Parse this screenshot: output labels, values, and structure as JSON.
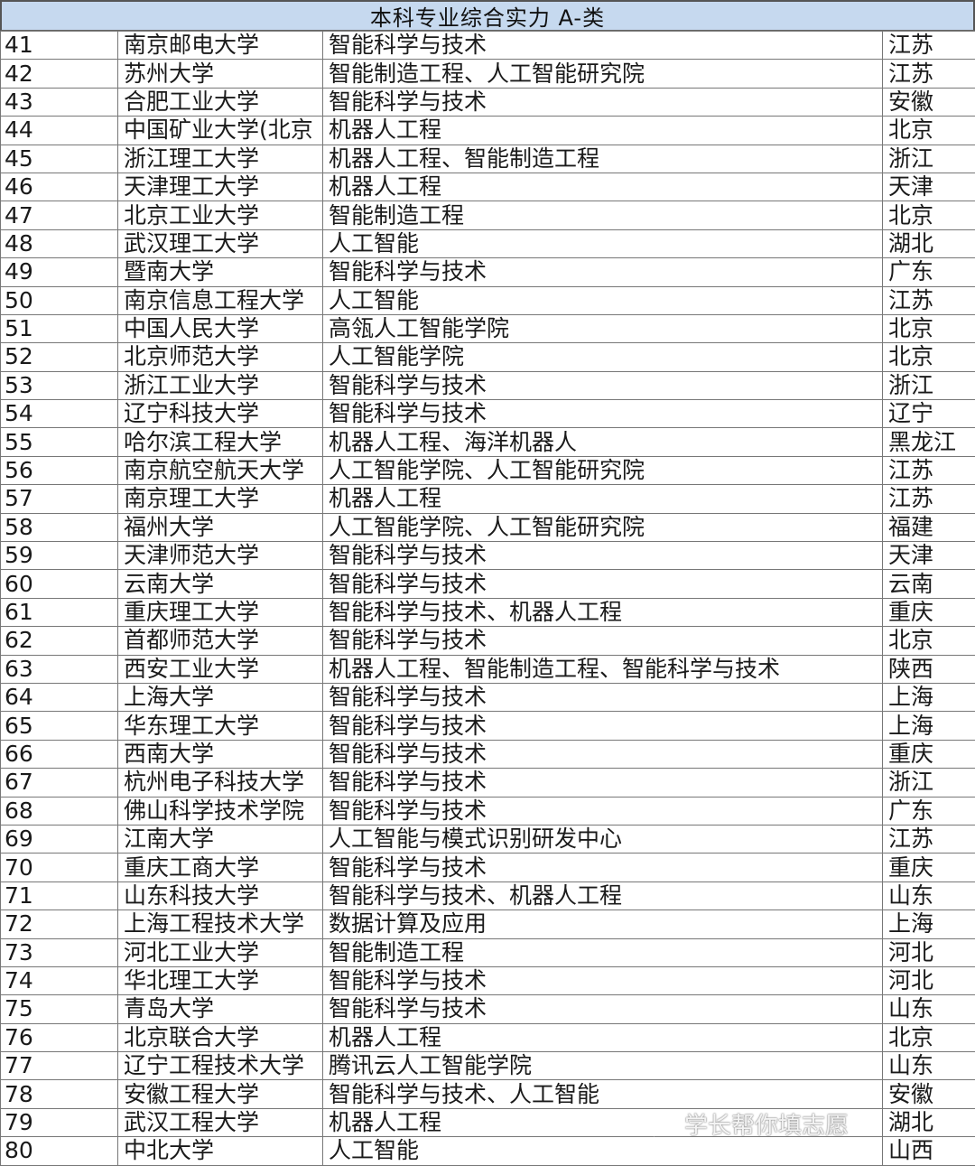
{
  "title": "本科专业综合实力 A-类",
  "rows": [
    [
      "41",
      "南京邮电大学",
      "智能科学与技术",
      "江苏"
    ],
    [
      "42",
      "苏州大学",
      "智能制造工程、人工智能研究院",
      "江苏"
    ],
    [
      "43",
      "合肥工业大学",
      "智能科学与技术",
      "安徽"
    ],
    [
      "44",
      "中国矿业大学(北京",
      "机器人工程",
      "北京"
    ],
    [
      "45",
      "浙江理工大学",
      "机器人工程、智能制造工程",
      "浙江"
    ],
    [
      "46",
      "天津理工大学",
      "机器人工程",
      "天津"
    ],
    [
      "47",
      "北京工业大学",
      "智能制造工程",
      "北京"
    ],
    [
      "48",
      "武汉理工大学",
      "人工智能",
      "湖北"
    ],
    [
      "49",
      "暨南大学",
      "智能科学与技术",
      "广东"
    ],
    [
      "50",
      "南京信息工程大学",
      "人工智能",
      "江苏"
    ],
    [
      "51",
      "中国人民大学",
      "高瓴人工智能学院",
      "北京"
    ],
    [
      "52",
      "北京师范大学",
      "人工智能学院",
      "北京"
    ],
    [
      "53",
      "浙江工业大学",
      "智能科学与技术",
      "浙江"
    ],
    [
      "54",
      "辽宁科技大学",
      "智能科学与技术",
      "辽宁"
    ],
    [
      "55",
      "哈尔滨工程大学",
      "机器人工程、海洋机器人",
      "黑龙江"
    ],
    [
      "56",
      "南京航空航天大学",
      "人工智能学院、人工智能研究院",
      "江苏"
    ],
    [
      "57",
      "南京理工大学",
      "机器人工程",
      "江苏"
    ],
    [
      "58",
      "福州大学",
      "人工智能学院、人工智能研究院",
      "福建"
    ],
    [
      "59",
      "天津师范大学",
      "智能科学与技术",
      "天津"
    ],
    [
      "60",
      "云南大学",
      "智能科学与技术",
      "云南"
    ],
    [
      "61",
      "重庆理工大学",
      "智能科学与技术、机器人工程",
      "重庆"
    ],
    [
      "62",
      "首都师范大学",
      "智能科学与技术",
      "北京"
    ],
    [
      "63",
      "西安工业大学",
      "机器人工程、智能制造工程、智能科学与技术",
      "陕西"
    ],
    [
      "64",
      "上海大学",
      "智能科学与技术",
      "上海"
    ],
    [
      "65",
      "华东理工大学",
      "智能科学与技术",
      "上海"
    ],
    [
      "66",
      "西南大学",
      "智能科学与技术",
      "重庆"
    ],
    [
      "67",
      "杭州电子科技大学",
      "智能科学与技术",
      "浙江"
    ],
    [
      "68",
      "佛山科学技术学院",
      "智能科学与技术",
      "广东"
    ],
    [
      "69",
      "江南大学",
      "人工智能与模式识别研发中心",
      "江苏"
    ],
    [
      "70",
      "重庆工商大学",
      "智能科学与技术",
      "重庆"
    ],
    [
      "71",
      "山东科技大学",
      "智能科学与技术、机器人工程",
      "山东"
    ],
    [
      "72",
      "上海工程技术大学",
      "数据计算及应用",
      "上海"
    ],
    [
      "73",
      "河北工业大学",
      "智能制造工程",
      "河北"
    ],
    [
      "74",
      "华北理工大学",
      "智能科学与技术",
      "河北"
    ],
    [
      "75",
      "青岛大学",
      "智能科学与技术",
      "山东"
    ],
    [
      "76",
      "北京联合大学",
      "机器人工程",
      "北京"
    ],
    [
      "77",
      "辽宁工程技术大学",
      "腾讯云人工智能学院",
      "山东"
    ],
    [
      "78",
      "安徽工程大学",
      "智能科学与技术、人工智能",
      "安徽"
    ],
    [
      "79",
      "武汉工程大学",
      "机器人工程",
      "湖北"
    ],
    [
      "80",
      "中北大学",
      "人工智能",
      "山西"
    ]
  ],
  "watermark": {
    "icon": "wechat-icon",
    "text": "学长帮你填志愿"
  }
}
